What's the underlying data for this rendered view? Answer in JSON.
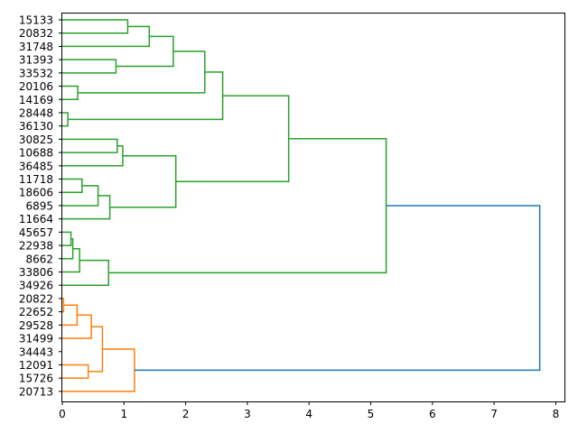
{
  "chart_data": {
    "type": "dendrogram",
    "orientation": "left",
    "title": "",
    "xlabel": "",
    "ylabel": "",
    "xlim": [
      0,
      8.1
    ],
    "x_ticks": [
      0,
      1,
      2,
      3,
      4,
      5,
      6,
      7,
      8
    ],
    "x_tick_labels": [
      "0",
      "1",
      "2",
      "3",
      "4",
      "5",
      "6",
      "7",
      "8"
    ],
    "leaves": [
      "15133",
      "20832",
      "31748",
      "31393",
      "33532",
      "20106",
      "14169",
      "28448",
      "36130",
      "30825",
      "10688",
      "36485",
      "11718",
      "18606",
      "6895",
      "11664",
      "45657",
      "22938",
      "8662",
      "33806",
      "34926",
      "20822",
      "22652",
      "29528",
      "31499",
      "34443",
      "12091",
      "15726",
      "20713"
    ],
    "colors": {
      "cluster_1": "#2ca02c",
      "cluster_2": "#ff7f0e",
      "above_threshold": "#1f77b4"
    },
    "merges": [
      {
        "a": 0,
        "b": 1,
        "height": 1.06,
        "color": "#2ca02c"
      },
      {
        "a": 29,
        "b": 2,
        "height": 1.41,
        "color": "#2ca02c"
      },
      {
        "a": 3,
        "b": 4,
        "height": 0.87,
        "color": "#2ca02c"
      },
      {
        "a": 30,
        "b": 31,
        "height": 1.8,
        "color": "#2ca02c"
      },
      {
        "a": 5,
        "b": 6,
        "height": 0.25,
        "color": "#2ca02c"
      },
      {
        "a": 32,
        "b": 33,
        "height": 2.31,
        "color": "#2ca02c"
      },
      {
        "a": 7,
        "b": 8,
        "height": 0.09,
        "color": "#2ca02c"
      },
      {
        "a": 34,
        "b": 35,
        "height": 2.6,
        "color": "#2ca02c"
      },
      {
        "a": 9,
        "b": 10,
        "height": 0.89,
        "color": "#2ca02c"
      },
      {
        "a": 37,
        "b": 11,
        "height": 0.98,
        "color": "#2ca02c"
      },
      {
        "a": 12,
        "b": 13,
        "height": 0.32,
        "color": "#2ca02c"
      },
      {
        "a": 39,
        "b": 14,
        "height": 0.58,
        "color": "#2ca02c"
      },
      {
        "a": 40,
        "b": 15,
        "height": 0.77,
        "color": "#2ca02c"
      },
      {
        "a": 38,
        "b": 41,
        "height": 1.84,
        "color": "#2ca02c"
      },
      {
        "a": 36,
        "b": 42,
        "height": 3.67,
        "color": "#2ca02c"
      },
      {
        "a": 16,
        "b": 17,
        "height": 0.14,
        "color": "#2ca02c"
      },
      {
        "a": 44,
        "b": 18,
        "height": 0.17,
        "color": "#2ca02c"
      },
      {
        "a": 45,
        "b": 19,
        "height": 0.28,
        "color": "#2ca02c"
      },
      {
        "a": 46,
        "b": 20,
        "height": 0.75,
        "color": "#2ca02c"
      },
      {
        "a": 43,
        "b": 47,
        "height": 5.25,
        "color": "#2ca02c"
      },
      {
        "a": 21,
        "b": 22,
        "height": 0.02,
        "color": "#ff7f0e"
      },
      {
        "a": 49,
        "b": 23,
        "height": 0.24,
        "color": "#ff7f0e"
      },
      {
        "a": 50,
        "b": 24,
        "height": 0.47,
        "color": "#ff7f0e"
      },
      {
        "a": 26,
        "b": 27,
        "height": 0.42,
        "color": "#ff7f0e"
      },
      {
        "a": 51,
        "b": 52,
        "height": 0.65,
        "color": "#ff7f0e"
      },
      {
        "a": 53,
        "b": 25,
        "height": 0.0,
        "color": "#ff7f0e",
        "note_skip": true
      },
      {
        "a": 53,
        "b": 28,
        "height": 1.17,
        "color": "#ff7f0e"
      },
      {
        "a": 48,
        "b": 55,
        "height": 7.74,
        "color": "#1f77b4"
      }
    ]
  }
}
